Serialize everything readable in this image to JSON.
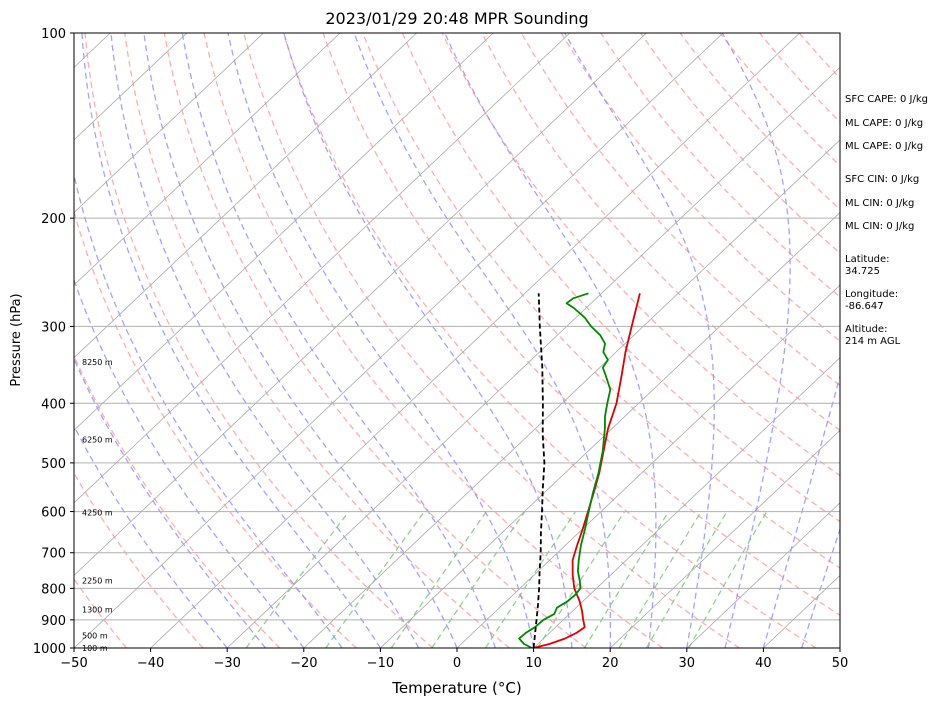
{
  "chart_data": {
    "type": "line",
    "title": "2023/01/29 20:48 MPR Sounding",
    "xlabel": "Temperature (°C)",
    "ylabel": "Pressure (hPa)",
    "xlim": [
      -50,
      50
    ],
    "ylim": [
      1000,
      100
    ],
    "y_scale": "log",
    "skew": true,
    "grid": true,
    "x_ticks": [
      "−50",
      "−40",
      "−30",
      "−20",
      "−10",
      "0",
      "10",
      "20",
      "30",
      "40",
      "50"
    ],
    "y_ticks": [
      "100",
      "200",
      "300",
      "400",
      "500",
      "600",
      "700",
      "800",
      "900",
      "1000"
    ],
    "height_labels": [
      {
        "text": "100 m",
        "p": 1000
      },
      {
        "text": "500 m",
        "p": 955
      },
      {
        "text": "1300 m",
        "p": 866
      },
      {
        "text": "2250 m",
        "p": 777
      },
      {
        "text": "4250 m",
        "p": 602
      },
      {
        "text": "6250 m",
        "p": 458
      },
      {
        "text": "8250 m",
        "p": 343
      }
    ],
    "series": [
      {
        "color": "#e00000",
        "points": [
          {
            "p": 1000,
            "t": 10.0
          },
          {
            "p": 985,
            "t": 11.5
          },
          {
            "p": 965,
            "t": 12.8
          },
          {
            "p": 945,
            "t": 13.5
          },
          {
            "p": 925,
            "t": 13.8
          },
          {
            "p": 900,
            "t": 12.6
          },
          {
            "p": 870,
            "t": 11.2
          },
          {
            "p": 840,
            "t": 9.6
          },
          {
            "p": 800,
            "t": 7.1
          },
          {
            "p": 760,
            "t": 5.0
          },
          {
            "p": 720,
            "t": 3.0
          },
          {
            "p": 680,
            "t": 1.5
          },
          {
            "p": 640,
            "t": 0.0
          },
          {
            "p": 600,
            "t": -1.7
          },
          {
            "p": 560,
            "t": -3.5
          },
          {
            "p": 520,
            "t": -5.5
          },
          {
            "p": 480,
            "t": -7.9
          },
          {
            "p": 440,
            "t": -10.5
          },
          {
            "p": 400,
            "t": -12.9
          },
          {
            "p": 360,
            "t": -16.1
          },
          {
            "p": 330,
            "t": -18.8
          },
          {
            "p": 300,
            "t": -21.5
          },
          {
            "p": 265,
            "t": -25.0
          }
        ]
      },
      {
        "color": "#008800",
        "points": [
          {
            "p": 1000,
            "t": 9.8
          },
          {
            "p": 985,
            "t": 8.2
          },
          {
            "p": 965,
            "t": 6.8
          },
          {
            "p": 945,
            "t": 6.9
          },
          {
            "p": 925,
            "t": 7.3
          },
          {
            "p": 900,
            "t": 7.4
          },
          {
            "p": 880,
            "t": 8.0
          },
          {
            "p": 860,
            "t": 7.5
          },
          {
            "p": 840,
            "t": 8.0
          },
          {
            "p": 820,
            "t": 8.1
          },
          {
            "p": 800,
            "t": 7.9
          },
          {
            "p": 780,
            "t": 6.9
          },
          {
            "p": 750,
            "t": 5.2
          },
          {
            "p": 720,
            "t": 3.8
          },
          {
            "p": 680,
            "t": 2.0
          },
          {
            "p": 640,
            "t": 0.3
          },
          {
            "p": 600,
            "t": -1.6
          },
          {
            "p": 560,
            "t": -3.6
          },
          {
            "p": 520,
            "t": -5.6
          },
          {
            "p": 480,
            "t": -8.0
          },
          {
            "p": 440,
            "t": -10.9
          },
          {
            "p": 420,
            "t": -12.6
          },
          {
            "p": 400,
            "t": -14.1
          },
          {
            "p": 380,
            "t": -15.6
          },
          {
            "p": 360,
            "t": -18.2
          },
          {
            "p": 350,
            "t": -19.6
          },
          {
            "p": 340,
            "t": -20.0
          },
          {
            "p": 330,
            "t": -21.7
          },
          {
            "p": 320,
            "t": -22.6
          },
          {
            "p": 310,
            "t": -24.4
          },
          {
            "p": 300,
            "t": -26.8
          },
          {
            "p": 290,
            "t": -28.9
          },
          {
            "p": 280,
            "t": -31.6
          },
          {
            "p": 275,
            "t": -33.2
          },
          {
            "p": 270,
            "t": -33.0
          },
          {
            "p": 265,
            "t": -31.7
          }
        ]
      },
      {
        "color": "#000000",
        "dashed": true,
        "points": [
          {
            "p": 1000,
            "t": 10.0
          },
          {
            "p": 950,
            "t": 8.3
          },
          {
            "p": 900,
            "t": 6.5
          },
          {
            "p": 850,
            "t": 4.6
          },
          {
            "p": 800,
            "t": 2.5
          },
          {
            "p": 750,
            "t": 0.2
          },
          {
            "p": 700,
            "t": -2.2
          },
          {
            "p": 650,
            "t": -4.9
          },
          {
            "p": 600,
            "t": -7.7
          },
          {
            "p": 550,
            "t": -10.8
          },
          {
            "p": 500,
            "t": -14.1
          },
          {
            "p": 450,
            "t": -18.2
          },
          {
            "p": 400,
            "t": -22.5
          },
          {
            "p": 350,
            "t": -27.5
          },
          {
            "p": 300,
            "t": -33.5
          },
          {
            "p": 265,
            "t": -38.2
          }
        ]
      }
    ]
  },
  "side_panel": {
    "sfc_cape": "SFC CAPE: 0 J/kg",
    "ml_cape_1": "ML CAPE: 0 J/kg",
    "ml_cape_2": "ML CAPE: 0 J/kg",
    "sfc_cin": "SFC CIN: 0 J/kg",
    "ml_cin_1": "ML CIN: 0 J/kg",
    "ml_cin_2": "ML CIN: 0 J/kg",
    "latitude": "Latitude:\n34.725",
    "longitude": "Longitude:\n-86.647",
    "altitude": "Altitude:\n214 m AGL"
  },
  "colors": {
    "dry_adiabat": "#ff9a9a",
    "moist_adiabat": "#8c8cff",
    "mixing_ratio": "#76c676",
    "isotherm": "#aaaaaa"
  }
}
